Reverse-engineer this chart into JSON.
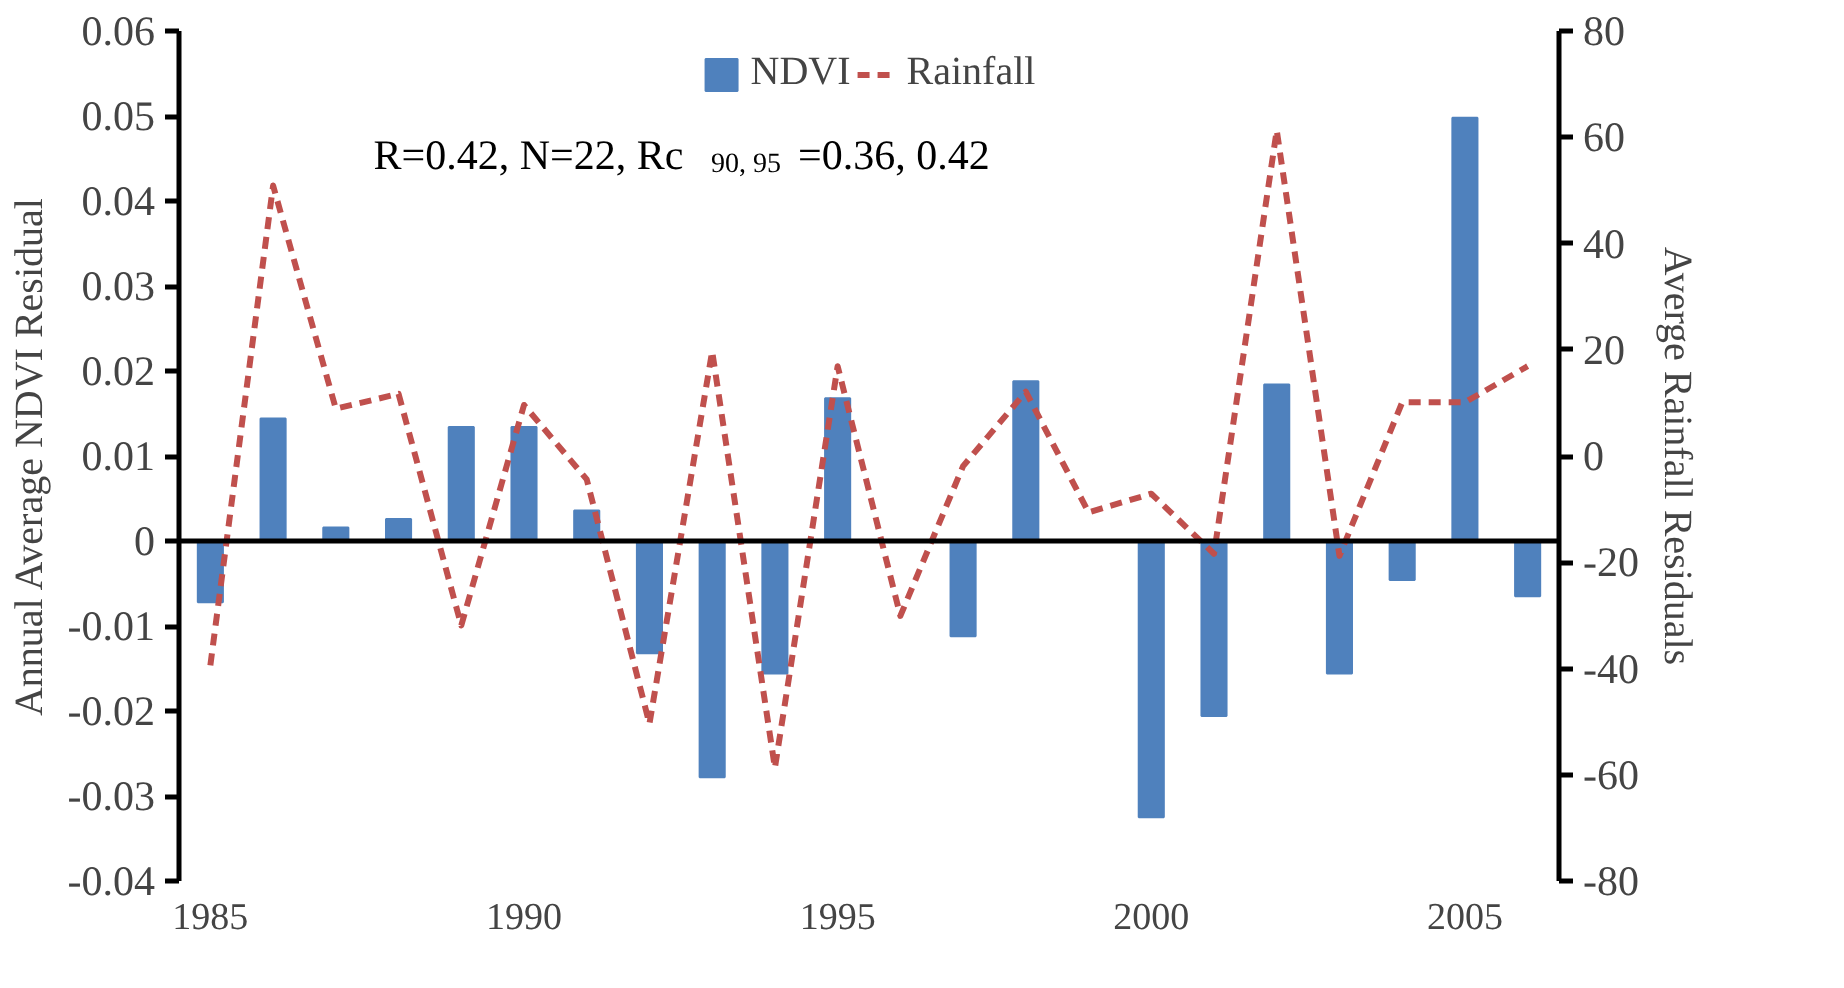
{
  "chart_data": {
    "type": "bar",
    "categories": [
      "1985",
      null,
      null,
      null,
      null,
      "1990",
      null,
      null,
      null,
      null,
      "1995",
      null,
      null,
      null,
      null,
      "2000",
      null,
      null,
      null,
      null,
      "2005",
      null
    ],
    "series": [
      {
        "name": "NDVI",
        "color": "#4f81bd",
        "values": [
          -0.0072,
          0.0144,
          0.0016,
          0.0026,
          0.0134,
          0.0134,
          0.0036,
          -0.0132,
          -0.0278,
          -0.0156,
          0.0168,
          0,
          -0.0112,
          0.0188,
          0,
          -0.0325,
          -0.0206,
          0.0184,
          -0.0156,
          -0.0046,
          0.0498,
          -0.0065
        ]
      },
      {
        "name": "Rainfall",
        "type": "line",
        "axis": "y2",
        "color": "#c0504d",
        "line_style": "dashed",
        "values": [
          -39.4,
          50.9,
          8.9,
          11.7,
          -31.9,
          9.6,
          -4.4,
          -50.4,
          19.7,
          -58.7,
          16.9,
          -30.1,
          -1.9,
          12.1,
          -10.6,
          -7.1,
          -18.4,
          61.3,
          -18.8,
          10.1,
          10.1,
          16.9
        ]
      }
    ],
    "ylabel": "Annual Average NDVI Residual",
    "y2label": "Averge Rainfall Residuals",
    "ylim": [
      -0.04,
      0.06
    ],
    "yticks": [
      -0.04,
      -0.03,
      -0.02,
      -0.01,
      0,
      0.01,
      0.02,
      0.03,
      0.04,
      0.05,
      0.06
    ],
    "y2lim": [
      -80,
      80
    ],
    "y2ticks": [
      -80,
      -60,
      -40,
      -20,
      0,
      20,
      40,
      60,
      80
    ],
    "annotations": [
      "R=0.42, N=22, Rc $_{90, 95}$=0.36, 0.42"
    ],
    "ref_lines": [
      {
        "axis": "y",
        "value": 0,
        "color": "#000000"
      }
    ],
    "legend": "top",
    "grid": false
  }
}
